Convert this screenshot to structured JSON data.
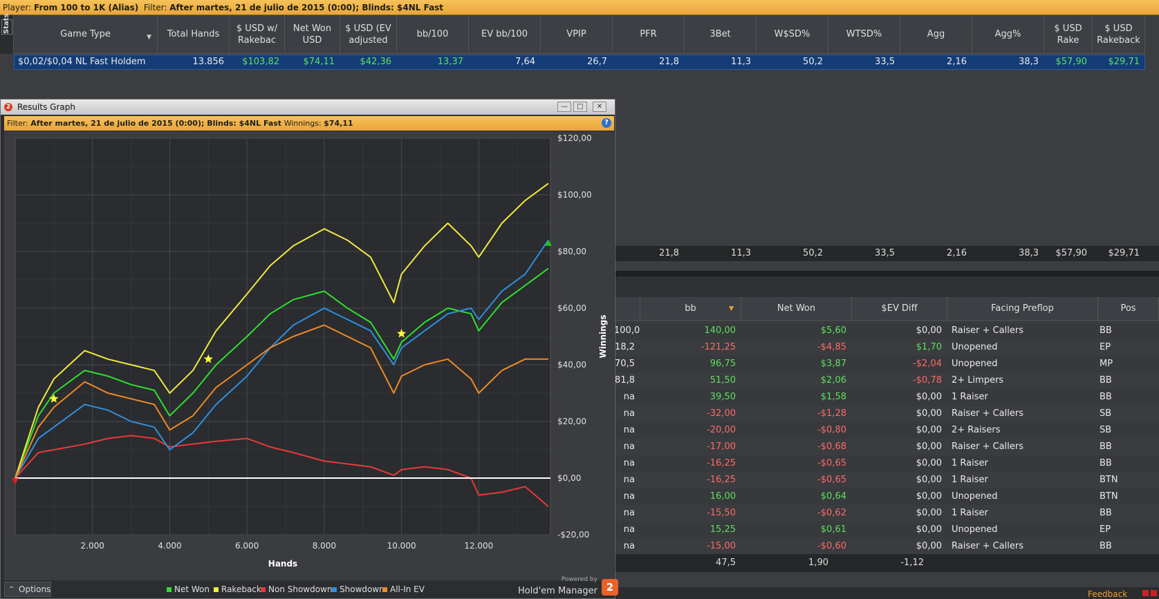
{
  "topbar": {
    "player_label": "Player:",
    "player_value": "From 100 to 1K (Alias)",
    "filter_label": "Filter:",
    "filter_value": "After martes, 21 de julio de 2015 (0:00); Blinds: $4NL Fast"
  },
  "stats_tab": "Stats",
  "stats_table": {
    "headers": [
      "Game Type",
      "Total Hands",
      "$ USD w/ Rakebac",
      "Net Won USD",
      "$ USD (EV adjusted",
      "bb/100",
      "EV bb/100",
      "VPIP",
      "PFR",
      "3Bet",
      "W$SD%",
      "WTSD%",
      "Agg",
      "Agg%",
      "$ USD Rake",
      "$ USD Rakeback"
    ],
    "row": [
      "$0,02/$0,04 NL Fast Holdem",
      "13.856",
      "$103,82",
      "$74,11",
      "$42,36",
      "13,37",
      "7,64",
      "26,7",
      "21,8",
      "11,3",
      "50,2",
      "33,5",
      "2,16",
      "38,3",
      "$57,90",
      "$29,71"
    ],
    "totals": [
      "21,8",
      "11,3",
      "50,2",
      "33,5",
      "2,16",
      "38,3",
      "$57,90",
      "$29,71"
    ]
  },
  "hands_table": {
    "headers": [
      "bb",
      "Net Won",
      "$EV Diff",
      "Facing Preflop",
      "Pos"
    ],
    "rows": [
      {
        "c0": "100,0",
        "bb": "140,00",
        "net": "$5,60",
        "ev": "$0,00",
        "facing": "Raiser + Callers",
        "pos": "BB"
      },
      {
        "c0": "18,2",
        "bb": "-121,25",
        "net": "-$4,85",
        "ev": "$1,70",
        "facing": "Unopened",
        "pos": "EP"
      },
      {
        "c0": "70,5",
        "bb": "96,75",
        "net": "$3,87",
        "ev": "-$2,04",
        "facing": "Unopened",
        "pos": "MP"
      },
      {
        "c0": "81,8",
        "bb": "51,50",
        "net": "$2,06",
        "ev": "-$0,78",
        "facing": "2+ Limpers",
        "pos": "BB"
      },
      {
        "c0": "na",
        "bb": "39,50",
        "net": "$1,58",
        "ev": "$0,00",
        "facing": "1 Raiser",
        "pos": "BB"
      },
      {
        "c0": "na",
        "bb": "-32,00",
        "net": "-$1,28",
        "ev": "$0,00",
        "facing": "Raiser + Callers",
        "pos": "SB"
      },
      {
        "c0": "na",
        "bb": "-20,00",
        "net": "-$0,80",
        "ev": "$0,00",
        "facing": "2+ Raisers",
        "pos": "SB"
      },
      {
        "c0": "na",
        "bb": "-17,00",
        "net": "-$0,68",
        "ev": "$0,00",
        "facing": "Raiser + Callers",
        "pos": "BB"
      },
      {
        "c0": "na",
        "bb": "-16,25",
        "net": "-$0,65",
        "ev": "$0,00",
        "facing": "1 Raiser",
        "pos": "BB"
      },
      {
        "c0": "na",
        "bb": "-16,25",
        "net": "-$0,65",
        "ev": "$0,00",
        "facing": "1 Raiser",
        "pos": "BTN"
      },
      {
        "c0": "na",
        "bb": "16,00",
        "net": "$0,64",
        "ev": "$0,00",
        "facing": "Unopened",
        "pos": "BTN"
      },
      {
        "c0": "na",
        "bb": "-15,50",
        "net": "-$0,62",
        "ev": "$0,00",
        "facing": "1 Raiser",
        "pos": "BB"
      },
      {
        "c0": "na",
        "bb": "15,25",
        "net": "$0,61",
        "ev": "$0,00",
        "facing": "Unopened",
        "pos": "EP"
      },
      {
        "c0": "na",
        "bb": "-15,00",
        "net": "-$0,60",
        "ev": "$0,00",
        "facing": "Raiser + Callers",
        "pos": "BB"
      }
    ],
    "totals": {
      "bb": "47,5",
      "net": "1,90",
      "ev": "-1,12"
    }
  },
  "graph_window": {
    "title": "Results Graph",
    "filter_label": "Filter:",
    "filter_value": "After martes, 21 de julio de 2015 (0:00); Blinds: $4NL Fast",
    "winnings_label": "Winnings:",
    "winnings_value": "$74,11",
    "options_label": "Options",
    "powered_by": "Powered by",
    "brand": "Hold'em Manager",
    "brand_badge": "2"
  },
  "status_bar": {
    "feedback": "Feedback"
  },
  "chart_data": {
    "type": "line",
    "xlabel": "Hands",
    "ylabel": "Winnings",
    "xlim": [
      0,
      13856
    ],
    "ylim": [
      -20,
      120
    ],
    "x_ticks": [
      2000,
      4000,
      6000,
      8000,
      10000,
      12000
    ],
    "x_tick_labels": [
      "2.000",
      "4.000",
      "6.000",
      "8.000",
      "10.000",
      "12.000"
    ],
    "y_ticks": [
      120,
      100,
      80,
      60,
      40,
      20,
      0,
      -20
    ],
    "y_tick_labels": [
      "$120,00",
      "$100,00",
      "$80,00",
      "$60,00",
      "$40,00",
      "$20,00",
      "$0,00",
      "-$20,00"
    ],
    "grid": true,
    "legend_position": "bottom",
    "x": [
      0,
      600,
      1000,
      1800,
      2400,
      3000,
      3600,
      4000,
      4600,
      5200,
      6000,
      6600,
      7200,
      8000,
      8600,
      9200,
      9800,
      10000,
      10600,
      11200,
      11800,
      12000,
      12600,
      13200,
      13800
    ],
    "series": [
      {
        "name": "Net Won",
        "color": "#2fe02f",
        "values": [
          0,
          22,
          30,
          38,
          36,
          33,
          31,
          22,
          30,
          40,
          50,
          58,
          63,
          66,
          60,
          55,
          42,
          48,
          55,
          60,
          58,
          52,
          62,
          68,
          74
        ]
      },
      {
        "name": "Rakeback",
        "color": "#f2ea3c",
        "values": [
          0,
          25,
          35,
          45,
          42,
          40,
          38,
          30,
          38,
          52,
          65,
          75,
          82,
          88,
          84,
          78,
          62,
          72,
          82,
          90,
          82,
          78,
          90,
          98,
          104
        ]
      },
      {
        "name": "Non Showdown",
        "color": "#e83a3a",
        "values": [
          0,
          9,
          10,
          12,
          14,
          15,
          14,
          11,
          12,
          13,
          14,
          11,
          9,
          6,
          5,
          4,
          1,
          3,
          4,
          3,
          0,
          -6,
          -5,
          -3,
          -10
        ]
      },
      {
        "name": "Showdown",
        "color": "#2f8fe0",
        "values": [
          0,
          14,
          18,
          26,
          24,
          20,
          18,
          10,
          16,
          26,
          36,
          46,
          54,
          60,
          56,
          52,
          40,
          46,
          52,
          58,
          60,
          56,
          66,
          72,
          84
        ]
      },
      {
        "name": "All-In EV",
        "color": "#f08a24",
        "values": [
          0,
          18,
          25,
          34,
          30,
          28,
          26,
          17,
          22,
          32,
          40,
          46,
          50,
          54,
          50,
          46,
          30,
          36,
          40,
          42,
          35,
          30,
          38,
          42,
          42
        ]
      }
    ],
    "markers": [
      {
        "x": 1000,
        "y": 28,
        "shape": "star",
        "color": "#ffff33"
      },
      {
        "x": 5000,
        "y": 42,
        "shape": "star",
        "color": "#ffff33"
      },
      {
        "x": 10000,
        "y": 51,
        "shape": "star",
        "color": "#ffff33"
      },
      {
        "x": 0,
        "y": -1,
        "shape": "triangle-down",
        "color": "#e02020"
      },
      {
        "x": 13800,
        "y": 83,
        "shape": "triangle-up",
        "color": "#20c020"
      }
    ]
  }
}
